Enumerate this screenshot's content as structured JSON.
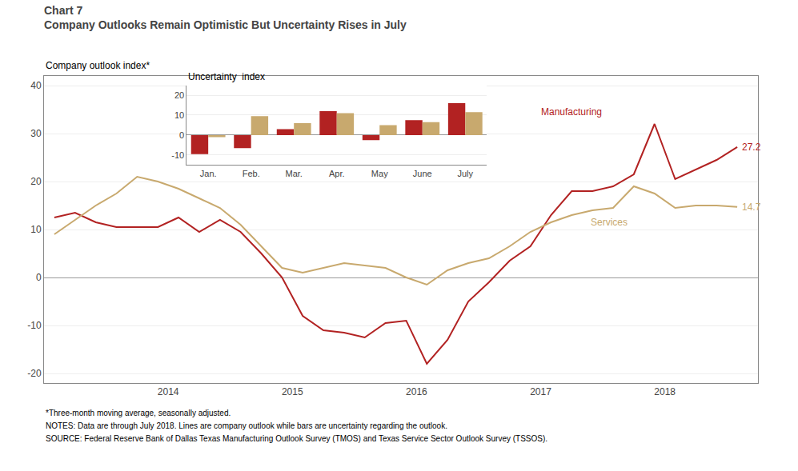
{
  "chart_data": [
    {
      "type": "line",
      "title": "Chart 7",
      "subtitle": "Company Outlooks Remain Optimistic But Uncertainty Rises in July",
      "y_label": "Company outlook index*",
      "x": [
        2013.083,
        2013.25,
        2013.417,
        2013.583,
        2013.75,
        2013.917,
        2014.083,
        2014.25,
        2014.417,
        2014.583,
        2014.75,
        2014.917,
        2015.083,
        2015.25,
        2015.417,
        2015.583,
        2015.75,
        2015.917,
        2016.083,
        2016.25,
        2016.417,
        2016.583,
        2016.75,
        2016.917,
        2017.083,
        2017.25,
        2017.417,
        2017.583,
        2017.75,
        2017.917,
        2018.083,
        2018.25,
        2018.417,
        2018.583
      ],
      "series": [
        {
          "name": "Manufacturing",
          "color": "#b22222",
          "values": [
            12.5,
            13.5,
            11.5,
            10.5,
            10.5,
            10.5,
            12.5,
            9.5,
            12.0,
            9.5,
            5.0,
            0.0,
            -8.0,
            -11.0,
            -11.5,
            -12.5,
            -9.5,
            -9.0,
            -18.0,
            -13.0,
            -5.0,
            -1.0,
            3.5,
            6.5,
            13.0,
            18.0,
            18.0,
            19.0,
            21.5,
            32.0,
            20.5,
            22.5,
            24.5,
            27.2
          ],
          "value_labels": [
            null,
            null,
            null,
            null,
            null,
            null,
            null,
            null,
            null,
            null,
            null,
            null,
            null,
            null,
            null,
            null,
            null,
            null,
            null,
            null,
            null,
            null,
            null,
            null,
            null,
            null,
            null,
            null,
            null,
            null,
            null,
            null,
            null,
            "27.2"
          ]
        },
        {
          "name": "Services",
          "color": "#c8a96e",
          "values": [
            9.0,
            12.0,
            15.0,
            17.5,
            21.0,
            20.0,
            18.5,
            16.5,
            14.5,
            11.0,
            6.5,
            2.0,
            1.0,
            2.0,
            3.0,
            2.5,
            2.0,
            0.0,
            -1.5,
            1.5,
            3.0,
            4.0,
            6.5,
            9.5,
            11.5,
            13.0,
            14.0,
            14.5,
            19.0,
            17.5,
            14.5,
            15.0,
            15.0,
            14.7
          ],
          "value_labels": [
            null,
            null,
            null,
            null,
            null,
            null,
            null,
            null,
            null,
            null,
            null,
            null,
            null,
            null,
            null,
            null,
            null,
            null,
            null,
            null,
            null,
            null,
            null,
            null,
            null,
            null,
            null,
            null,
            null,
            null,
            null,
            null,
            null,
            "14.7"
          ]
        }
      ],
      "annotations": [
        {
          "text": "Manufacturing",
          "x": 2017.25,
          "y": 34.5
        },
        {
          "text": "Services",
          "x": 2017.55,
          "y": 11.5
        }
      ],
      "footnotes": [
        "*Three-month moving average, seasonally adjusted.",
        "NOTES: Data are through July 2018. Lines are company outlook while bars are uncertainty regarding the outlook.",
        "SOURCE: Federal Reserve Bank of Dallas Texas Manufacturing Outlook Survey (TMOS) and Texas Service Sector Outlook Survey (TSSOS)."
      ],
      "xlim": [
        2013.0,
        2018.75
      ],
      "xticks": [
        2014,
        2015,
        2016,
        2017,
        2018
      ],
      "ylim": [
        -22,
        42
      ],
      "yticks": [
        -20,
        -10,
        0,
        10,
        20,
        30,
        40
      ],
      "grid": true
    },
    {
      "type": "bar",
      "title": "Uncertainty  index",
      "categories": [
        "Jan.",
        "Feb.",
        "Mar.",
        "Apr.",
        "May",
        "June",
        "July"
      ],
      "series": [
        {
          "name": "Manufacturing",
          "color": "#b22222",
          "values": [
            -9.5,
            -6.5,
            3.0,
            12.0,
            -2.5,
            7.5,
            16.0
          ]
        },
        {
          "name": "Services",
          "color": "#c8a96e",
          "values": [
            -1.0,
            9.5,
            6.0,
            11.0,
            5.0,
            6.5,
            11.5
          ]
        }
      ],
      "ylim": [
        -15,
        25
      ],
      "yticks": [
        -10,
        0,
        10,
        20
      ],
      "grid": true
    }
  ]
}
